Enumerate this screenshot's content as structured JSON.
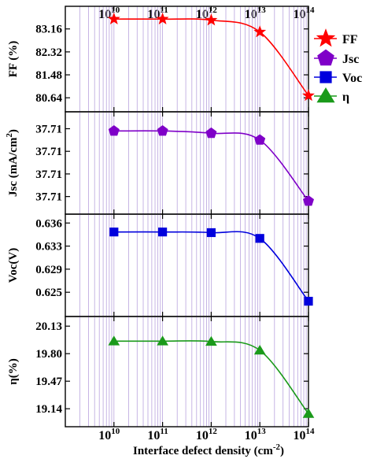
{
  "chart": {
    "xlabel_text": "Interface defect density (cm",
    "xlabel_exp": "-2",
    "xlabel_close": ")",
    "x_tick_base": "10",
    "x_tick_exponents": [
      "10",
      "11",
      "12",
      "13",
      "14"
    ]
  },
  "legend": [
    {
      "label": "FF",
      "color": "#ff0000",
      "marker": "star"
    },
    {
      "label": "Jsc",
      "color": "#7f00c8",
      "marker": "pentagon"
    },
    {
      "label": "Voc",
      "color": "#0000dd",
      "marker": "square"
    },
    {
      "label": "η",
      "color": "#1a9a1a",
      "marker": "triangle"
    }
  ],
  "chart_data": [
    {
      "type": "line",
      "xscale": "log",
      "x": [
        10000000000.0,
        100000000000.0,
        1000000000000.0,
        10000000000000.0,
        100000000000000.0
      ],
      "xlim": [
        1000000000.0,
        100000000000000.0
      ],
      "series": [
        {
          "name": "FF",
          "values": [
            83.52,
            83.52,
            83.48,
            83.05,
            80.72
          ],
          "color": "#ff0000",
          "marker": "star"
        }
      ],
      "ylabel": "FF (%)",
      "ylabel_parts": [
        "FF (%)",
        ""
      ],
      "yticks": [
        "80.64",
        "81.48",
        "82.32",
        "83.16"
      ],
      "yticks_num": [
        80.64,
        81.48,
        82.32,
        83.16
      ],
      "ylim": [
        80.3,
        83.7
      ],
      "grid": "vertical minor"
    },
    {
      "type": "line",
      "xscale": "log",
      "x": [
        10000000000.0,
        100000000000.0,
        1000000000000.0,
        10000000000000.0,
        100000000000000.0
      ],
      "xlim": [
        1000000000.0,
        100000000000000.0
      ],
      "series": [
        {
          "name": "Jsc",
          "values": [
            37.7128,
            37.7128,
            37.7127,
            37.7124,
            37.7097
          ],
          "color": "#7f00c8",
          "marker": "pentagon"
        }
      ],
      "ylabel": "Jsc (mA/cm",
      "ylabel_parts": [
        "Jsc (mA/cm",
        "2",
        ")"
      ],
      "yticks": [
        "37.71",
        "37.71",
        "37.71",
        "37.71"
      ],
      "yticks_num": [
        37.7099,
        37.7109,
        37.7119,
        37.7129
      ],
      "ylim": [
        37.7094,
        37.7133
      ],
      "grid": "vertical minor"
    },
    {
      "type": "line",
      "xscale": "log",
      "x": [
        10000000000.0,
        100000000000.0,
        1000000000000.0,
        10000000000000.0,
        100000000000000.0
      ],
      "xlim": [
        1000000000.0,
        100000000000000.0
      ],
      "series": [
        {
          "name": "Voc",
          "values": [
            0.6347,
            0.6347,
            0.6346,
            0.6337,
            0.6239
          ],
          "color": "#0000dd",
          "marker": "square"
        }
      ],
      "ylabel": "Voc(V)",
      "ylabel_parts": [
        "Voc(V)",
        ""
      ],
      "yticks": [
        "0.625",
        "0.629",
        "0.633",
        "0.636"
      ],
      "yticks_num": [
        0.6253,
        0.6289,
        0.6325,
        0.6361
      ],
      "ylim": [
        0.6225,
        0.6365
      ],
      "grid": "vertical minor"
    },
    {
      "type": "line",
      "xscale": "log",
      "x": [
        10000000000.0,
        100000000000.0,
        1000000000000.0,
        10000000000000.0,
        100000000000000.0
      ],
      "xlim": [
        1000000000.0,
        100000000000000.0
      ],
      "series": [
        {
          "name": "η",
          "values": [
            19.95,
            19.95,
            19.945,
            19.84,
            19.08
          ],
          "color": "#1a9a1a",
          "marker": "triangle"
        }
      ],
      "ylabel": "η(%)",
      "ylabel_parts": [
        "η(%)",
        ""
      ],
      "yticks": [
        "19.14",
        "19.47",
        "19.80",
        "20.13"
      ],
      "yticks_num": [
        19.14,
        19.47,
        19.8,
        20.13
      ],
      "ylim": [
        19.0,
        20.17
      ],
      "grid": "vertical minor"
    }
  ]
}
